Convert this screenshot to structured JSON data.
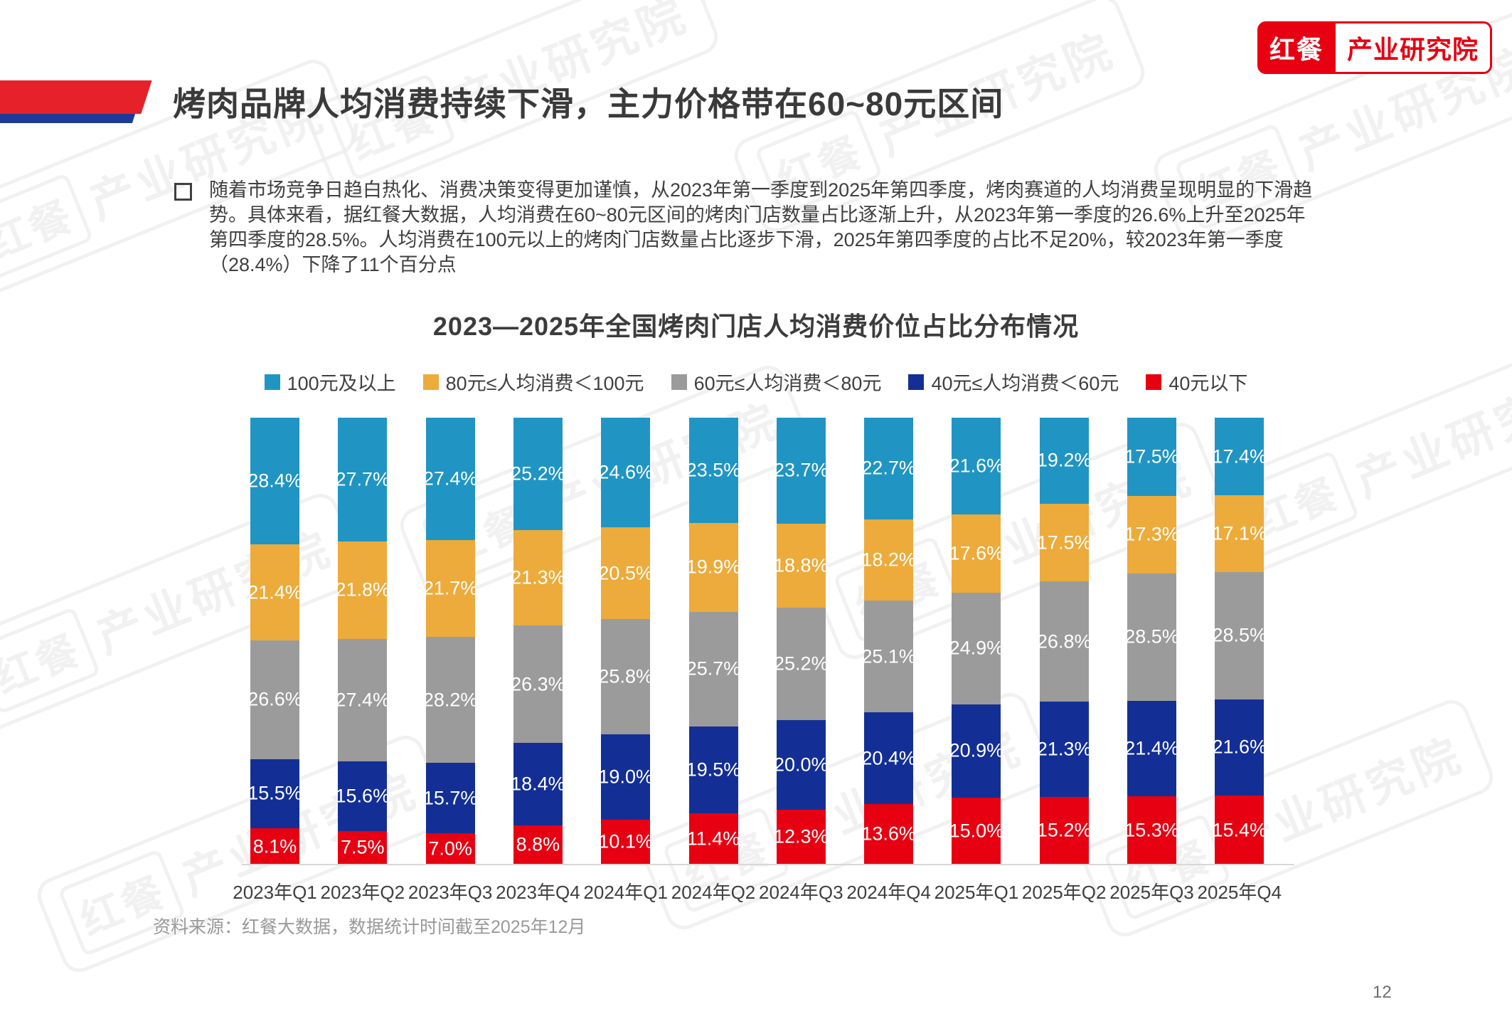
{
  "logo": {
    "brand": "红餐",
    "suffix": "产业研究院"
  },
  "header": {
    "title": "烤肉品牌人均消费持续下滑，主力价格带在60~80元区间"
  },
  "summary": {
    "lines": [
      "随着市场竞争日趋白热化、消费决策变得更加谨慎，从2023年第一季度到2025年第四季度，烤肉赛道的人均消费呈现明显的下滑趋",
      "势。具体来看，据红餐大数据，人均消费在60~80元区间的烤肉门店数量占比逐渐上升，从2023年第一季度的26.6%上升至2025年",
      "第四季度的28.5%。人均消费在100元以上的烤肉门店数量占比逐步下滑，2025年第四季度的占比不足20%，较2023年第一季度",
      "（28.4%）下降了11个百分点"
    ]
  },
  "chart_data": {
    "type": "bar",
    "stacked": true,
    "title": "2023—2025年全国烤肉门店人均消费价位占比分布情况",
    "categories": [
      "2023年Q1",
      "2023年Q2",
      "2023年Q3",
      "2023年Q4",
      "2024年Q1",
      "2024年Q2",
      "2024年Q3",
      "2024年Q4",
      "2025年Q1",
      "2025年Q2",
      "2025年Q3",
      "2025年Q4"
    ],
    "series": [
      {
        "name": "100元及以上",
        "color": "#2095C3",
        "values": [
          28.4,
          27.7,
          27.4,
          25.2,
          24.6,
          23.5,
          23.7,
          22.7,
          21.6,
          19.2,
          17.5,
          17.4
        ]
      },
      {
        "name": "80元≤人均消费＜100元",
        "color": "#ECAB3B",
        "values": [
          21.4,
          21.8,
          21.7,
          21.3,
          20.5,
          19.9,
          18.8,
          18.2,
          17.6,
          17.5,
          17.3,
          17.1
        ]
      },
      {
        "name": "60元≤人均消费＜80元",
        "color": "#9B9B9B",
        "values": [
          26.6,
          27.4,
          28.2,
          26.3,
          25.8,
          25.7,
          25.2,
          25.1,
          24.9,
          26.8,
          28.5,
          28.5
        ]
      },
      {
        "name": "40元≤人均消费＜60元",
        "color": "#132F96",
        "values": [
          15.5,
          15.6,
          15.7,
          18.4,
          19.0,
          19.5,
          20.0,
          20.4,
          20.9,
          21.3,
          21.4,
          21.6
        ]
      },
      {
        "name": "40元以下",
        "color": "#E60012",
        "values": [
          8.1,
          7.5,
          7.0,
          8.8,
          10.1,
          11.4,
          12.3,
          13.6,
          15.0,
          15.2,
          15.3,
          15.4
        ]
      }
    ],
    "value_suffix": "%",
    "ylim": [
      0,
      100
    ],
    "grid": false,
    "legend_position": "top",
    "label_position": "inside-center"
  },
  "source_note": "资料来源：红餐大数据，数据统计时间截至2025年12月",
  "page": {
    "number": "12"
  }
}
